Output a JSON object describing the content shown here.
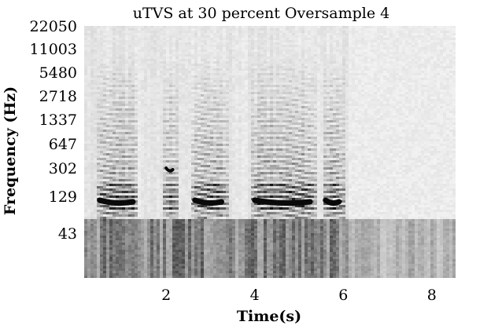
{
  "chart_data": {
    "type": "heatmap",
    "title": "uTVS at 30 percent Oversample 4",
    "xlabel": "Time(s)",
    "ylabel": "Frequency (Hz)",
    "x_ticks": [
      "2",
      "4",
      "6",
      "8"
    ],
    "x_tick_values": [
      2,
      4,
      6,
      8
    ],
    "xlim": [
      0.15,
      8.5
    ],
    "y_ticks": [
      "22050",
      "11003",
      "5480",
      "2718",
      "1337",
      "647",
      "302",
      "129",
      "43"
    ],
    "y_tick_values": [
      22050,
      11003,
      5480,
      2718,
      1337,
      647,
      302,
      129,
      43
    ],
    "y_scale": "log",
    "colormap": "gray-inverted",
    "speech_segments": [
      {
        "start": 0.4,
        "end": 1.35,
        "low_harmonic_hz": 129
      },
      {
        "start": 1.9,
        "end": 2.25,
        "low_harmonic_hz": 302
      },
      {
        "start": 2.55,
        "end": 3.35,
        "low_harmonic_hz": 129
      },
      {
        "start": 3.9,
        "end": 5.35,
        "low_harmonic_hz": 129
      },
      {
        "start": 5.5,
        "end": 6.0,
        "low_harmonic_hz": 129
      }
    ],
    "grid": false,
    "legend": "none"
  }
}
